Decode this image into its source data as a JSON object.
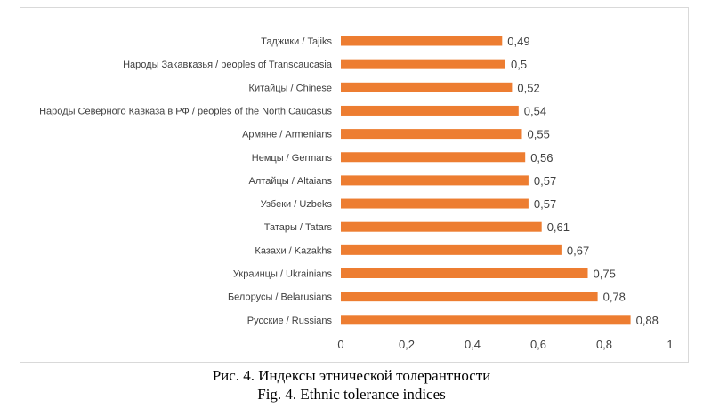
{
  "chart_data": {
    "type": "bar",
    "orientation": "horizontal",
    "categories": [
      "Таджики / Tajiks",
      "Народы Закавказья / peoples of Transcaucasia",
      "Китайцы / Chinese",
      "Народы Северного Кавказа в РФ / peoples of the North Caucasus",
      "Армяне / Armenians",
      "Немцы / Germans",
      "Алтайцы / Altaians",
      "Узбеки / Uzbeks",
      "Татары / Tatars",
      "Казахи / Kazakhs",
      "Украинцы / Ukrainians",
      "Белорусы / Belarusians",
      "Русские / Russians"
    ],
    "values": [
      0.49,
      0.5,
      0.52,
      0.54,
      0.55,
      0.56,
      0.57,
      0.57,
      0.61,
      0.67,
      0.75,
      0.78,
      0.88
    ],
    "value_labels": [
      "0,49",
      "0,5",
      "0,52",
      "0,54",
      "0,55",
      "0,56",
      "0,57",
      "0,57",
      "0,61",
      "0,67",
      "0,75",
      "0,78",
      "0,88"
    ],
    "xlim": [
      0,
      1
    ],
    "x_ticks": [
      0,
      0.2,
      0.4,
      0.6,
      0.8,
      1
    ],
    "x_tick_labels": [
      "0",
      "0,2",
      "0,4",
      "0,6",
      "0,8",
      "1"
    ],
    "bar_color": "#ED7D31",
    "grid": false,
    "legend": "none"
  },
  "captions": {
    "ru": "Рис. 4. Индексы этнической толерантности",
    "en": "Fig. 4. Ethnic tolerance indices"
  }
}
